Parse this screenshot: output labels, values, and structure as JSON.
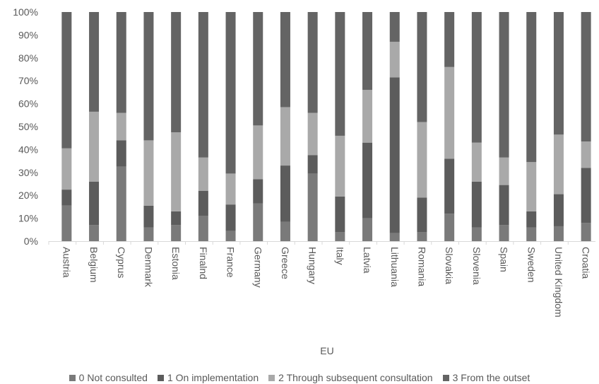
{
  "chart_data": {
    "type": "bar",
    "stacked": true,
    "percent": true,
    "xlabel": "EU",
    "ylabel": "",
    "ylim": [
      0,
      100
    ],
    "yticks": [
      "0%",
      "10%",
      "20%",
      "30%",
      "40%",
      "50%",
      "60%",
      "70%",
      "80%",
      "90%",
      "100%"
    ],
    "categories": [
      "Austria",
      "Belgium",
      "Cyprus",
      "Denmark",
      "Estonia",
      "Finalnd",
      "France",
      "Germany",
      "Greece",
      "Hungary",
      "Italy",
      "Latvia",
      "Lithuania",
      "Romania",
      "Slovakia",
      "Slovenia",
      "Spain",
      "Sweden",
      "United Kingdom",
      "Croatia"
    ],
    "series": [
      {
        "name": "0 Not consulted",
        "color": "#7a7a7a",
        "values": [
          15.5,
          7,
          32.5,
          6,
          7,
          11,
          4.5,
          16.5,
          8.5,
          29.5,
          4,
          10,
          3.5,
          4,
          12,
          6,
          7,
          6,
          6.5,
          8
        ]
      },
      {
        "name": "1 On implementation",
        "color": "#5c5c5c",
        "values": [
          7,
          19,
          11.5,
          9.5,
          6,
          11,
          11.5,
          10.5,
          24.5,
          8,
          15.5,
          33,
          68,
          15,
          24,
          20,
          17.5,
          7,
          14,
          24
        ]
      },
      {
        "name": "2 Through subsequent consultation",
        "color": "#a9a9a9",
        "values": [
          18,
          30.5,
          12,
          28.5,
          34.5,
          14.5,
          13.5,
          23.5,
          25.5,
          18.5,
          26.5,
          23,
          15.5,
          33,
          40,
          17,
          12,
          21.5,
          26,
          11.5
        ]
      },
      {
        "name": "3 From the outset",
        "color": "#646464",
        "values": [
          59.5,
          43.5,
          44,
          56,
          52.5,
          63.5,
          70.5,
          49.5,
          41.5,
          44,
          54,
          34,
          13,
          48,
          24,
          57,
          63.5,
          65.5,
          53.5,
          56.5
        ]
      }
    ],
    "legend_position": "bottom",
    "grid": false
  }
}
